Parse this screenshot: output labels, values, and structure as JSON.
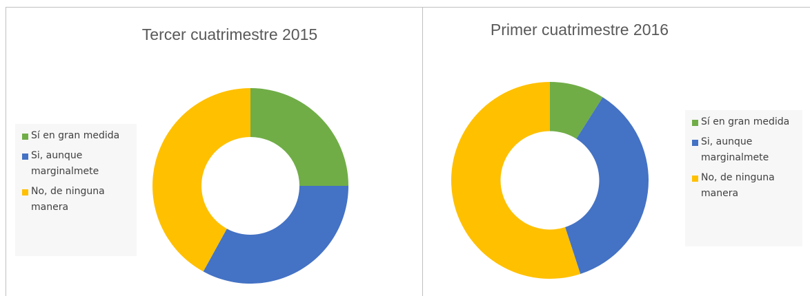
{
  "chart_data": [
    {
      "type": "pie",
      "title": "Tercer cuatrimestre 2015",
      "categories": [
        "Sí en gran medida",
        "Si, aunque marginalmete",
        "No, de ninguna manera"
      ],
      "values": [
        25,
        33,
        42
      ],
      "colors": [
        "#70ad47",
        "#4472c4",
        "#ffc000"
      ]
    },
    {
      "type": "pie",
      "title": "Primer cuatrimestre 2016",
      "categories": [
        "Sí en gran medida",
        "Si, aunque marginalmete",
        "No, de ninguna manera"
      ],
      "values": [
        9,
        36,
        55
      ],
      "colors": [
        "#70ad47",
        "#4472c4",
        "#ffc000"
      ]
    }
  ]
}
